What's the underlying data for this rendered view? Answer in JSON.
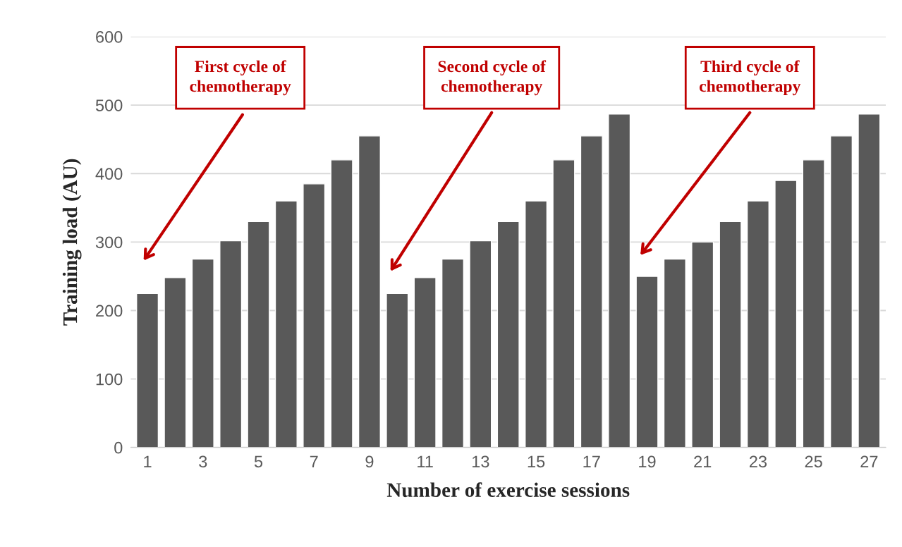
{
  "chart_data": {
    "type": "bar",
    "xlabel": "Number of exercise sessions",
    "ylabel": "Training load (AU)",
    "categories": [
      "1",
      null,
      "3",
      null,
      "5",
      null,
      "7",
      null,
      "9",
      null,
      "11",
      null,
      "13",
      null,
      "15",
      null,
      "17",
      null,
      "19",
      null,
      "21",
      null,
      "23",
      null,
      "25",
      null,
      "27"
    ],
    "values": [
      225,
      248,
      275,
      302,
      330,
      360,
      385,
      420,
      455,
      225,
      248,
      275,
      302,
      330,
      360,
      420,
      455,
      487,
      250,
      275,
      300,
      330,
      360,
      390,
      420,
      455,
      487
    ],
    "color": "#595959",
    "ylim": [
      0,
      600
    ],
    "yticks": [
      0,
      100,
      200,
      300,
      400,
      500,
      600
    ],
    "grid": "y",
    "annotations": [
      "First cycle of\nchemotherapy",
      "Second cycle of\nchemotherapy",
      "Third cycle of\nchemotherapy"
    ]
  }
}
